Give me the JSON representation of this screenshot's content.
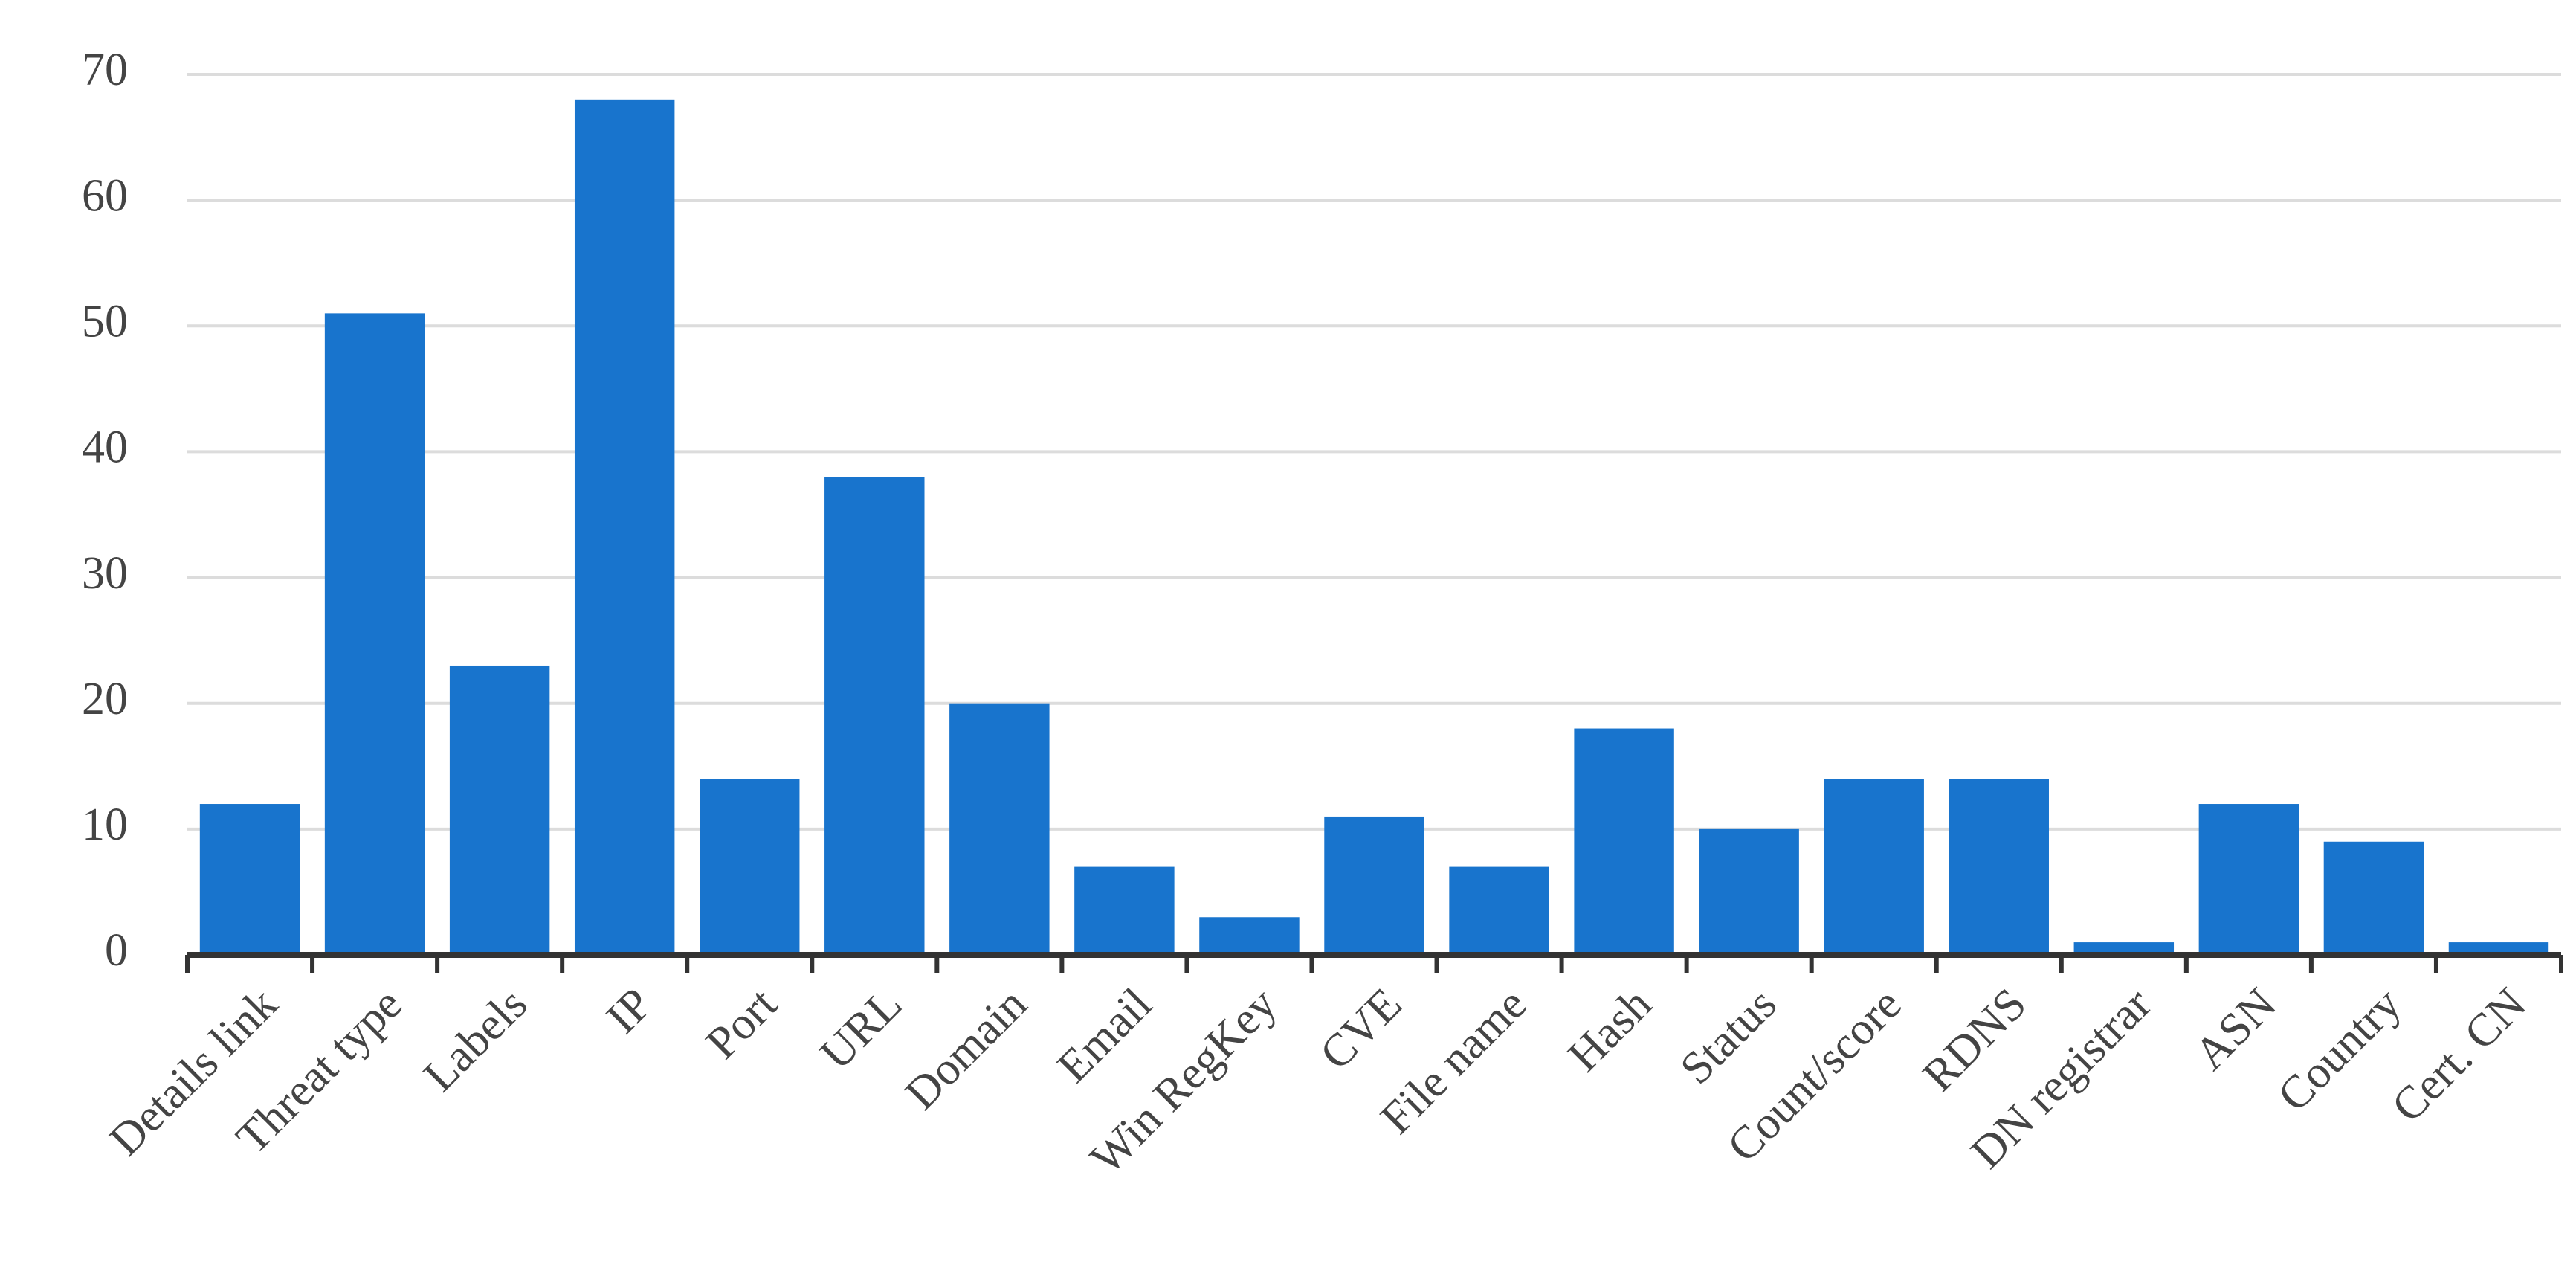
{
  "chart_data": {
    "type": "bar",
    "categories": [
      "Details link",
      "Threat type",
      "Labels",
      "IP",
      "Port",
      "URL",
      "Domain",
      "Email",
      "Win RegKey",
      "CVE",
      "File name",
      "Hash",
      "Status",
      "Count/score",
      "RDNS",
      "DN registrar",
      "ASN",
      "Country",
      "Cert. CN"
    ],
    "values": [
      12,
      51,
      23,
      68,
      14,
      38,
      20,
      7,
      3,
      11,
      7,
      18,
      10,
      14,
      14,
      1,
      12,
      9,
      1
    ],
    "color": "#1874cd",
    "ylim": [
      0,
      70
    ],
    "yticks": [
      0,
      10,
      20,
      30,
      40,
      50,
      60,
      70
    ],
    "grid": true
  }
}
